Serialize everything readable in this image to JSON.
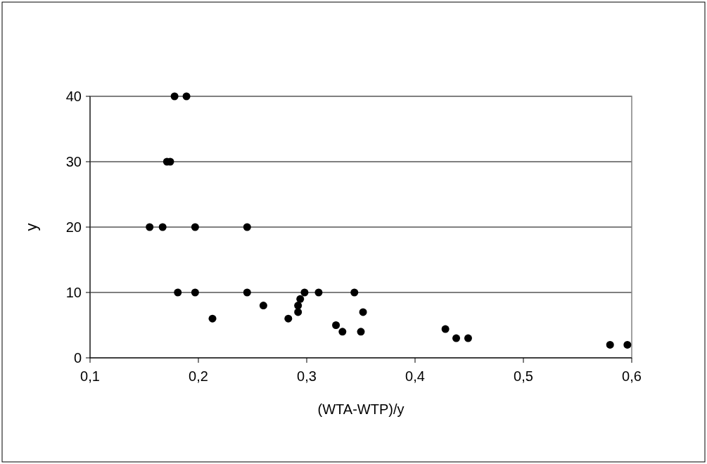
{
  "chart_data": {
    "type": "scatter",
    "xlabel": "(WTA-WTP)/y",
    "ylabel": "y",
    "x": [
      0.178,
      0.189,
      0.171,
      0.174,
      0.155,
      0.167,
      0.197,
      0.245,
      0.181,
      0.197,
      0.245,
      0.213,
      0.26,
      0.283,
      0.292,
      0.292,
      0.294,
      0.298,
      0.311,
      0.327,
      0.333,
      0.344,
      0.352,
      0.35,
      0.428,
      0.438,
      0.449,
      0.58,
      0.596
    ],
    "series": [
      {
        "color": "#000000",
        "values": [
          40,
          40,
          30,
          30,
          20,
          20,
          20,
          20,
          10,
          10,
          10,
          6,
          8,
          6,
          7,
          8,
          9,
          10,
          10,
          5,
          4,
          10,
          7,
          4,
          4.4,
          3,
          3,
          2,
          2
        ]
      }
    ],
    "xlim": [
      0.1,
      0.6
    ],
    "ylim": [
      0,
      40
    ],
    "xticks": [
      {
        "value": 0.1,
        "label": "0,1"
      },
      {
        "value": 0.2,
        "label": "0,2"
      },
      {
        "value": 0.3,
        "label": "0,3"
      },
      {
        "value": 0.4,
        "label": "0,4"
      },
      {
        "value": 0.5,
        "label": "0,5"
      },
      {
        "value": 0.6,
        "label": "0,6"
      }
    ],
    "yticks": [
      0,
      10,
      20,
      30,
      40
    ],
    "grid": "y",
    "marker": "circle"
  }
}
